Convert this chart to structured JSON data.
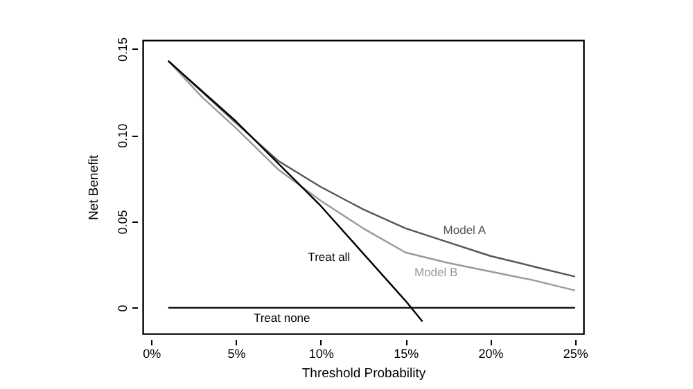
{
  "chart_data": {
    "type": "line",
    "xlabel": "Threshold Probability",
    "ylabel": "Net Benefit",
    "series": [
      {
        "name": "Model A",
        "color": "#555555",
        "x": [
          1,
          3,
          5,
          7.5,
          10,
          12.5,
          15,
          17.5,
          20,
          22.5,
          25
        ],
        "values": [
          0.143,
          0.125,
          0.107,
          0.085,
          0.07,
          0.057,
          0.046,
          0.038,
          0.03,
          0.024,
          0.018
        ]
      },
      {
        "name": "Model B",
        "color": "#9a9a9a",
        "x": [
          1,
          3,
          5,
          7.5,
          10,
          12.5,
          15,
          17.5,
          20,
          22.5,
          25
        ],
        "values": [
          0.143,
          0.122,
          0.104,
          0.08,
          0.062,
          0.046,
          0.032,
          0.026,
          0.021,
          0.016,
          0.01
        ]
      },
      {
        "name": "Treat all",
        "color": "#000000",
        "x": [
          1,
          5,
          10,
          15,
          16
        ],
        "values": [
          0.143,
          0.108,
          0.059,
          0.004,
          -0.008
        ]
      },
      {
        "name": "Treat none",
        "color": "#000000",
        "x": [
          1,
          25
        ],
        "values": [
          0,
          0
        ]
      }
    ],
    "xlim": [
      -0.5,
      25.5
    ],
    "ylim": [
      -0.015,
      0.155
    ],
    "xticks": [
      {
        "value": 0,
        "label": "0%"
      },
      {
        "value": 5,
        "label": "5%"
      },
      {
        "value": 10,
        "label": "10%"
      },
      {
        "value": 15,
        "label": "15%"
      },
      {
        "value": 20,
        "label": "20%"
      },
      {
        "value": 25,
        "label": "25%"
      }
    ],
    "yticks": [
      {
        "value": 0,
        "label": "0"
      },
      {
        "value": 0.05,
        "label": "0.05"
      },
      {
        "value": 0.1,
        "label": "0.10"
      },
      {
        "value": 0.15,
        "label": "0.15"
      }
    ],
    "grid": false,
    "legend": false,
    "marker": "none",
    "line_style": "solid"
  }
}
